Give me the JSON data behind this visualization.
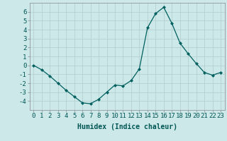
{
  "x": [
    0,
    1,
    2,
    3,
    4,
    5,
    6,
    7,
    8,
    9,
    10,
    11,
    12,
    13,
    14,
    15,
    16,
    17,
    18,
    19,
    20,
    21,
    22,
    23
  ],
  "y": [
    0,
    -0.5,
    -1.2,
    -2.0,
    -2.8,
    -3.5,
    -4.2,
    -4.3,
    -3.8,
    -3.0,
    -2.2,
    -2.3,
    -1.7,
    -0.4,
    4.2,
    5.8,
    6.5,
    4.7,
    2.5,
    1.3,
    0.2,
    -0.8,
    -1.1,
    -0.8
  ],
  "line_color": "#006060",
  "marker": "D",
  "marker_size": 2,
  "bg_color": "#cce8e8",
  "grid_color": "#b0cccc",
  "xlabel": "Humidex (Indice chaleur)",
  "ylim": [
    -5,
    7
  ],
  "xlim": [
    -0.5,
    23.5
  ],
  "yticks": [
    -4,
    -3,
    -2,
    -1,
    0,
    1,
    2,
    3,
    4,
    5,
    6
  ],
  "xticks": [
    0,
    1,
    2,
    3,
    4,
    5,
    6,
    7,
    8,
    9,
    10,
    11,
    12,
    13,
    14,
    15,
    16,
    17,
    18,
    19,
    20,
    21,
    22,
    23
  ],
  "xlabel_fontsize": 7,
  "tick_fontsize": 6.5
}
